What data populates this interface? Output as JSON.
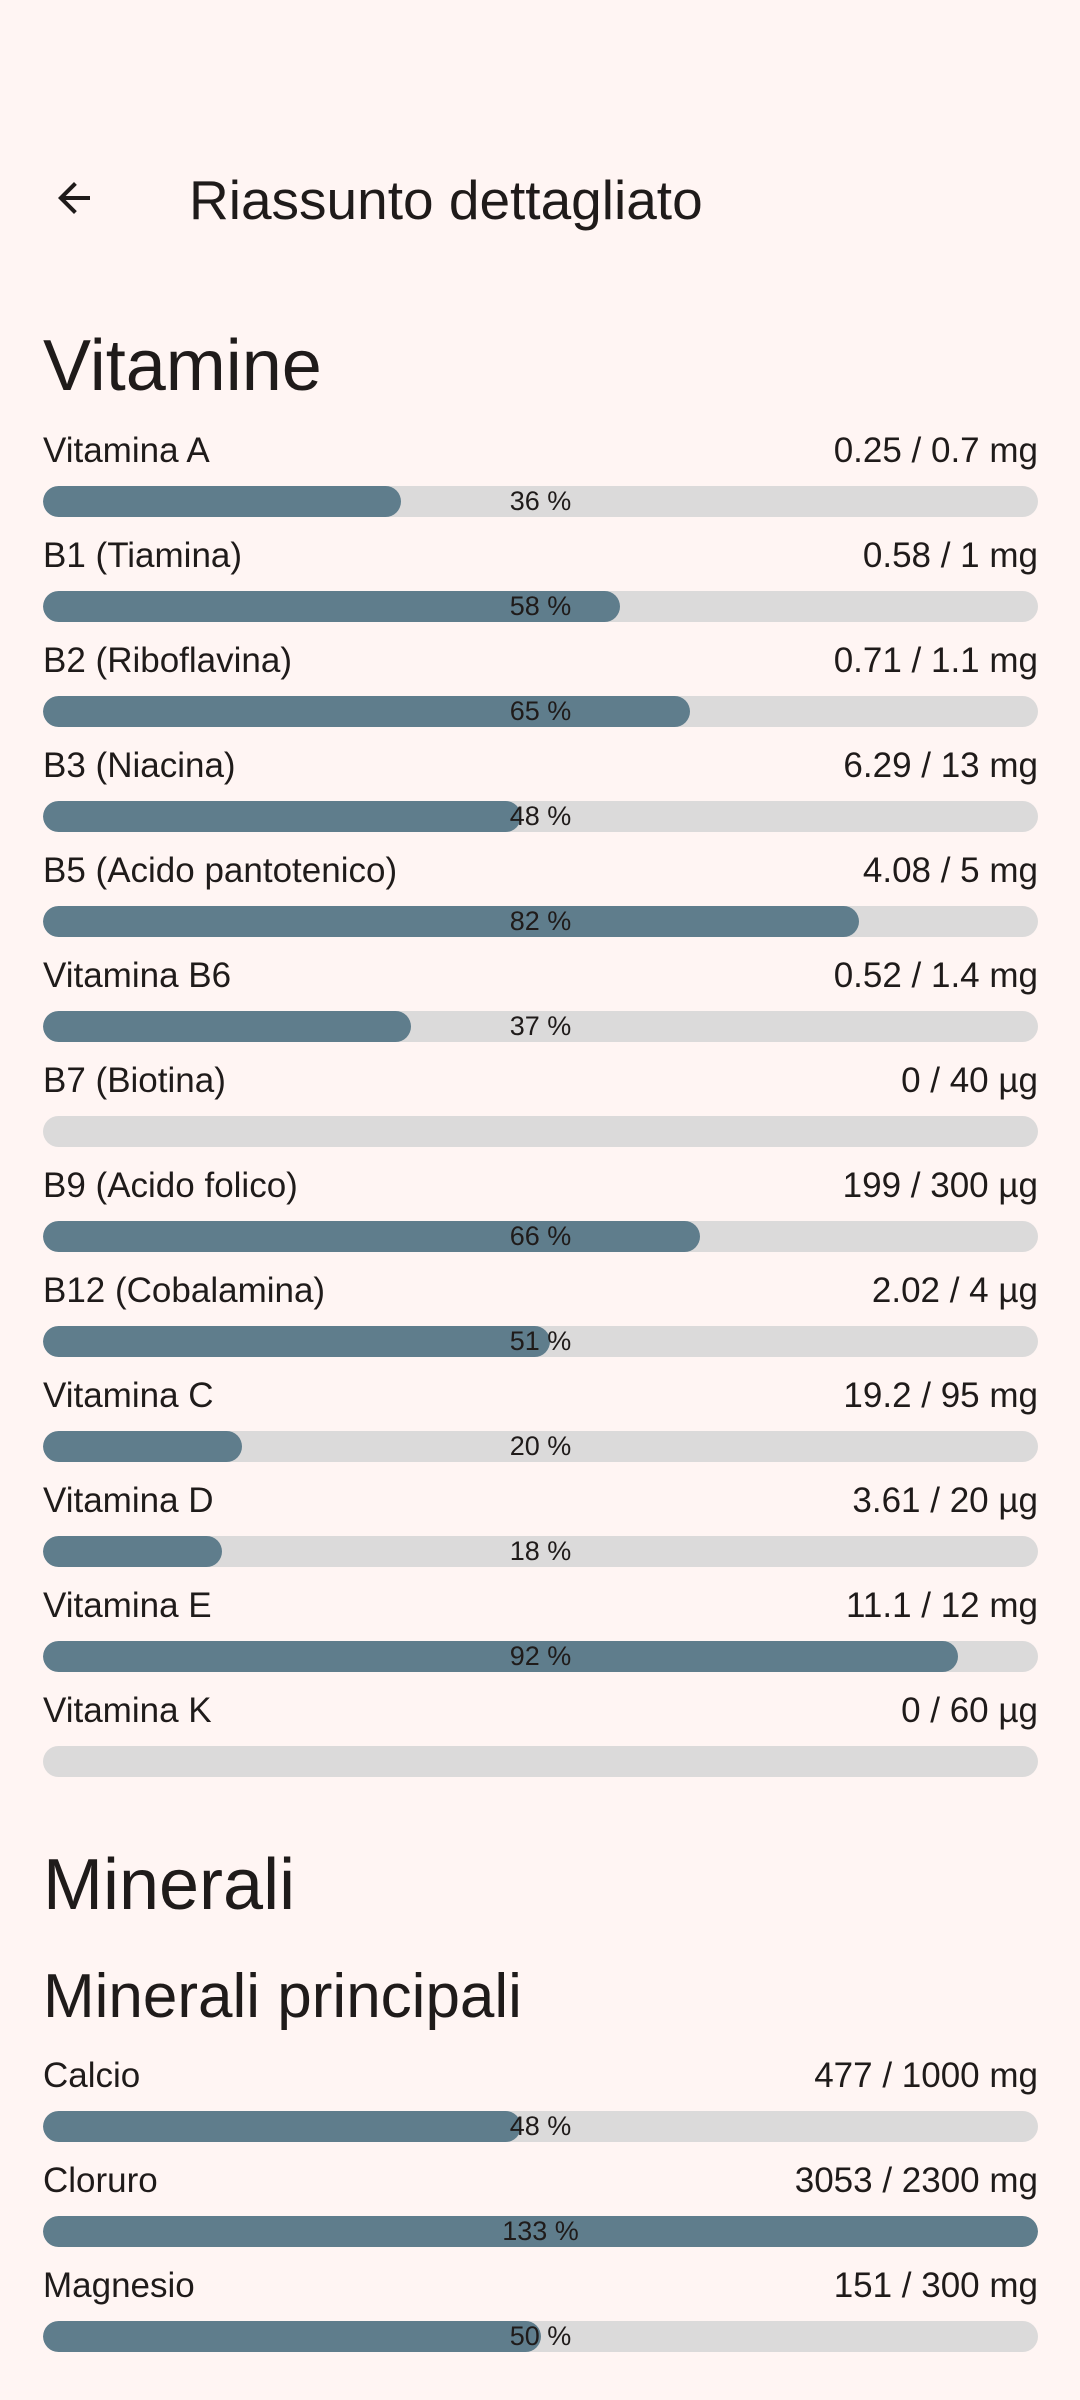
{
  "header": {
    "title": "Riassunto dettagliato",
    "back_icon": "arrow-left-icon"
  },
  "vitamins": {
    "title": "Vitamine",
    "items": [
      {
        "name": "Vitamina A",
        "amount": "0.25 / 0.7 mg",
        "percent_label": "36 %",
        "fraction": 0.36
      },
      {
        "name": "B1 (Tiamina)",
        "amount": "0.58 / 1 mg",
        "percent_label": "58 %",
        "fraction": 0.58
      },
      {
        "name": "B2 (Riboflavina)",
        "amount": "0.71 / 1.1 mg",
        "percent_label": "65 %",
        "fraction": 0.65
      },
      {
        "name": "B3 (Niacina)",
        "amount": "6.29 / 13 mg",
        "percent_label": "48 %",
        "fraction": 0.48
      },
      {
        "name": "B5 (Acido pantotenico)",
        "amount": "4.08 / 5 mg",
        "percent_label": "82 %",
        "fraction": 0.82
      },
      {
        "name": "Vitamina B6",
        "amount": "0.52 / 1.4 mg",
        "percent_label": "37 %",
        "fraction": 0.37
      },
      {
        "name": "B7 (Biotina)",
        "amount": "0 / 40 µg",
        "percent_label": "",
        "fraction": 0
      },
      {
        "name": "B9 (Acido folico)",
        "amount": "199 / 300 µg",
        "percent_label": "66 %",
        "fraction": 0.66
      },
      {
        "name": "B12 (Cobalamina)",
        "amount": "2.02 / 4 µg",
        "percent_label": "51 %",
        "fraction": 0.51
      },
      {
        "name": "Vitamina C",
        "amount": "19.2 / 95 mg",
        "percent_label": "20 %",
        "fraction": 0.2
      },
      {
        "name": "Vitamina D",
        "amount": "3.61 / 20 µg",
        "percent_label": "18 %",
        "fraction": 0.18
      },
      {
        "name": "Vitamina E",
        "amount": "11.1 / 12 mg",
        "percent_label": "92 %",
        "fraction": 0.92
      },
      {
        "name": "Vitamina K",
        "amount": "0 / 60 µg",
        "percent_label": "",
        "fraction": 0
      }
    ]
  },
  "minerals": {
    "title": "Minerali",
    "subtitle": "Minerali principali",
    "items": [
      {
        "name": "Calcio",
        "amount": "477 / 1000 mg",
        "percent_label": "48 %",
        "fraction": 0.48
      },
      {
        "name": "Cloruro",
        "amount": "3053 / 2300 mg",
        "percent_label": "133 %",
        "fraction": 1.33
      },
      {
        "name": "Magnesio",
        "amount": "151 / 300 mg",
        "percent_label": "50 %",
        "fraction": 0.5
      }
    ]
  },
  "colors": {
    "background": "#FFF5F3",
    "bar_fill": "#5F7D8C",
    "bar_track": "#DBDADA",
    "text": "#1F1B1A"
  }
}
